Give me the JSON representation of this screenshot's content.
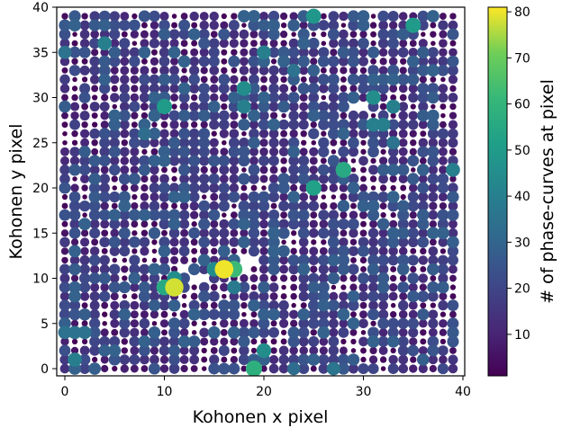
{
  "chart_data": {
    "type": "scatter",
    "title": "",
    "xlabel": "Kohonen x pixel",
    "ylabel": "Kohonen y pixel",
    "xlim": [
      -1,
      40
    ],
    "ylim": [
      -1,
      40
    ],
    "xticks": [
      0,
      10,
      20,
      30,
      40
    ],
    "yticks": [
      0,
      5,
      10,
      15,
      20,
      25,
      30,
      35,
      40
    ],
    "grid": false,
    "colormap": "viridis",
    "colorbar": {
      "label": "# of phase-curves at pixel",
      "range": [
        1,
        81
      ],
      "ticks": [
        10,
        20,
        30,
        40,
        50,
        60,
        70,
        80
      ]
    },
    "grid_size": [
      40,
      40
    ],
    "marker_size_encodes": "count",
    "background_points": {
      "description": "one point per Kohonen pixel (x 0-39, y 0-39); most counts between 1 and 30",
      "seed": 7,
      "typical_range": [
        1,
        30
      ]
    },
    "highlights": [
      {
        "x": 16,
        "y": 11,
        "value": 80
      },
      {
        "x": 11,
        "y": 9,
        "value": 78
      },
      {
        "x": 17,
        "y": 11,
        "value": 62
      },
      {
        "x": 19,
        "y": 0,
        "value": 58
      },
      {
        "x": 10,
        "y": 9,
        "value": 55
      },
      {
        "x": 28,
        "y": 22,
        "value": 55
      },
      {
        "x": 25,
        "y": 20,
        "value": 52
      },
      {
        "x": 10,
        "y": 29,
        "value": 50
      },
      {
        "x": 35,
        "y": 38,
        "value": 50
      },
      {
        "x": 25,
        "y": 39,
        "value": 48
      },
      {
        "x": 15,
        "y": 11,
        "value": 45
      },
      {
        "x": 11,
        "y": 10,
        "value": 45
      },
      {
        "x": 20,
        "y": 2,
        "value": 45
      },
      {
        "x": 18,
        "y": 31,
        "value": 45
      },
      {
        "x": 31,
        "y": 30,
        "value": 45
      },
      {
        "x": 4,
        "y": 36,
        "value": 40
      },
      {
        "x": 20,
        "y": 35,
        "value": 40
      },
      {
        "x": 1,
        "y": 1,
        "value": 40
      },
      {
        "x": 39,
        "y": 22,
        "value": 40
      },
      {
        "x": 33,
        "y": 29,
        "value": 40
      },
      {
        "x": 31,
        "y": 27,
        "value": 40
      },
      {
        "x": 32,
        "y": 27,
        "value": 40
      },
      {
        "x": 18,
        "y": 29,
        "value": 40
      },
      {
        "x": 17,
        "y": 9,
        "value": 38
      },
      {
        "x": 27,
        "y": 0,
        "value": 36
      },
      {
        "x": 0,
        "y": 35,
        "value": 35
      },
      {
        "x": 0,
        "y": 4,
        "value": 35
      },
      {
        "x": 1,
        "y": 4,
        "value": 35
      },
      {
        "x": 2,
        "y": 4,
        "value": 35
      },
      {
        "x": 33,
        "y": 25,
        "value": 35
      },
      {
        "x": 23,
        "y": 33,
        "value": 35
      },
      {
        "x": 23,
        "y": 0,
        "value": 33
      },
      {
        "x": 8,
        "y": 26,
        "value": 33
      }
    ],
    "empty_cells": [
      {
        "x": 18,
        "y": 11
      },
      {
        "x": 18,
        "y": 12
      },
      {
        "x": 19,
        "y": 12
      },
      {
        "x": 13,
        "y": 10
      },
      {
        "x": 14,
        "y": 10
      },
      {
        "x": 12,
        "y": 11
      },
      {
        "x": 29,
        "y": 29
      },
      {
        "x": 30,
        "y": 29
      }
    ]
  }
}
